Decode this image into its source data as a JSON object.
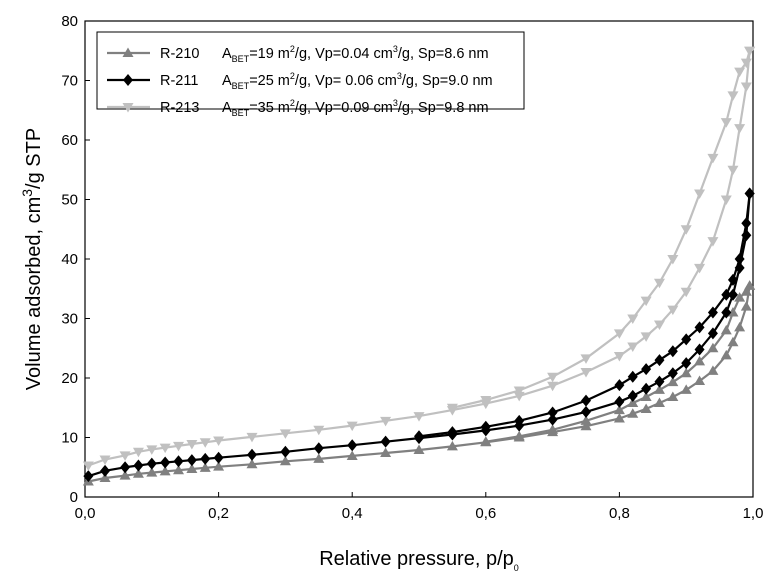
{
  "chart_data": {
    "type": "line",
    "xlabel": "Relative pressure, p/p",
    "xlabel_sub": "0",
    "ylabel": "Volume adsorbed, cm",
    "ylabel_sup": "3",
    "ylabel_tail": "/g STP",
    "xlim": [
      0,
      1
    ],
    "ylim": [
      0,
      80
    ],
    "x_ticks": [
      "0,0",
      "0,2",
      "0,4",
      "0,6",
      "0,8",
      "1,0"
    ],
    "y_ticks": [
      "0",
      "10",
      "20",
      "30",
      "40",
      "50",
      "60",
      "70",
      "80"
    ],
    "grid": false,
    "legend_position": "top-left",
    "series": [
      {
        "name": "R-210",
        "color": "#808080",
        "marker": "triangle-up",
        "legend": {
          "a_main": "A",
          "a_sub": "BET",
          "area": "=19 m",
          "area_sup": "2",
          "vp": "/g, Vp=0.04 cm",
          "vp_sup": "3",
          "sp": "/g, Sp=8.6 nm"
        },
        "adsorption": {
          "x": [
            0.005,
            0.03,
            0.06,
            0.08,
            0.1,
            0.12,
            0.14,
            0.16,
            0.18,
            0.2,
            0.25,
            0.3,
            0.35,
            0.4,
            0.45,
            0.5,
            0.55,
            0.6,
            0.65,
            0.7,
            0.75,
            0.8,
            0.82,
            0.84,
            0.86,
            0.88,
            0.9,
            0.92,
            0.94,
            0.96,
            0.97,
            0.98,
            0.99,
            0.995
          ],
          "y": [
            2.6,
            3.2,
            3.6,
            3.9,
            4.1,
            4.3,
            4.5,
            4.7,
            4.9,
            5.1,
            5.5,
            6.0,
            6.4,
            6.9,
            7.4,
            7.9,
            8.5,
            9.2,
            10.0,
            10.9,
            11.9,
            13.2,
            14.0,
            14.8,
            15.8,
            16.8,
            18.0,
            19.5,
            21.2,
            23.8,
            26.0,
            28.5,
            32.0,
            35.5
          ]
        },
        "desorption": {
          "x": [
            0.995,
            0.99,
            0.98,
            0.97,
            0.96,
            0.94,
            0.92,
            0.9,
            0.88,
            0.86,
            0.84,
            0.82,
            0.8,
            0.75,
            0.7,
            0.65,
            0.6
          ],
          "y": [
            35.5,
            34.5,
            33.5,
            31.0,
            28.0,
            25.0,
            22.8,
            20.8,
            19.3,
            18.0,
            16.8,
            15.8,
            14.6,
            12.8,
            11.3,
            10.2,
            9.3
          ]
        }
      },
      {
        "name": "R-211",
        "color": "#000000",
        "marker": "diamond",
        "legend": {
          "a_main": "A",
          "a_sub": "BET",
          "area": "=25 m",
          "area_sup": "2",
          "vp": "/g, Vp= 0.06 cm",
          "vp_sup": "3",
          "sp": "/g, Sp=9.0 nm"
        },
        "adsorption": {
          "x": [
            0.005,
            0.03,
            0.06,
            0.08,
            0.1,
            0.12,
            0.14,
            0.16,
            0.18,
            0.2,
            0.25,
            0.3,
            0.35,
            0.4,
            0.45,
            0.5,
            0.55,
            0.6,
            0.65,
            0.7,
            0.75,
            0.8,
            0.82,
            0.84,
            0.86,
            0.88,
            0.9,
            0.92,
            0.94,
            0.96,
            0.97,
            0.98,
            0.99,
            0.995
          ],
          "y": [
            3.5,
            4.4,
            5.0,
            5.3,
            5.6,
            5.8,
            6.0,
            6.2,
            6.4,
            6.6,
            7.1,
            7.6,
            8.2,
            8.7,
            9.3,
            9.9,
            10.5,
            11.2,
            12.0,
            13.0,
            14.3,
            16.0,
            17.0,
            18.2,
            19.4,
            20.8,
            22.5,
            24.8,
            27.5,
            31.0,
            34.0,
            38.5,
            44.0,
            51.0
          ]
        },
        "desorption": {
          "x": [
            0.995,
            0.99,
            0.98,
            0.97,
            0.96,
            0.94,
            0.92,
            0.9,
            0.88,
            0.86,
            0.84,
            0.82,
            0.8,
            0.75,
            0.7,
            0.65,
            0.6,
            0.55,
            0.5
          ],
          "y": [
            51.0,
            46.0,
            40.0,
            36.5,
            34.0,
            31.0,
            28.5,
            26.5,
            24.5,
            23.0,
            21.5,
            20.2,
            18.8,
            16.2,
            14.2,
            12.8,
            11.8,
            10.9,
            10.2
          ]
        }
      },
      {
        "name": "R-213",
        "color": "#c0c0c0",
        "marker": "triangle-down",
        "legend": {
          "a_main": "A",
          "a_sub": "BET",
          "area": "=35 m",
          "area_sup": "2",
          "vp": "/g, Vp=0.09 cm",
          "vp_sup": "3",
          "sp": "/g, Sp=9.8 nm"
        },
        "adsorption": {
          "x": [
            0.005,
            0.03,
            0.06,
            0.08,
            0.1,
            0.12,
            0.14,
            0.16,
            0.18,
            0.2,
            0.25,
            0.3,
            0.35,
            0.4,
            0.45,
            0.5,
            0.55,
            0.6,
            0.65,
            0.7,
            0.75,
            0.8,
            0.82,
            0.84,
            0.86,
            0.88,
            0.9,
            0.92,
            0.94,
            0.96,
            0.97,
            0.98,
            0.99,
            0.995
          ],
          "y": [
            5.3,
            6.3,
            7.0,
            7.6,
            8.0,
            8.3,
            8.6,
            8.9,
            9.2,
            9.5,
            10.1,
            10.7,
            11.3,
            12.0,
            12.8,
            13.6,
            14.6,
            15.7,
            17.0,
            18.7,
            21.0,
            23.7,
            25.3,
            27.0,
            29.0,
            31.5,
            34.5,
            38.5,
            43.0,
            50.0,
            55.0,
            62.0,
            69.0,
            75.0
          ]
        },
        "desorption": {
          "x": [
            0.995,
            0.99,
            0.98,
            0.97,
            0.96,
            0.94,
            0.92,
            0.9,
            0.88,
            0.86,
            0.84,
            0.82,
            0.8,
            0.75,
            0.7,
            0.65,
            0.6,
            0.55
          ],
          "y": [
            75.0,
            73.0,
            71.5,
            67.5,
            63.0,
            57.0,
            51.0,
            45.0,
            40.0,
            36.0,
            33.0,
            30.0,
            27.5,
            23.3,
            20.2,
            17.9,
            16.3,
            15.0
          ]
        }
      }
    ]
  }
}
